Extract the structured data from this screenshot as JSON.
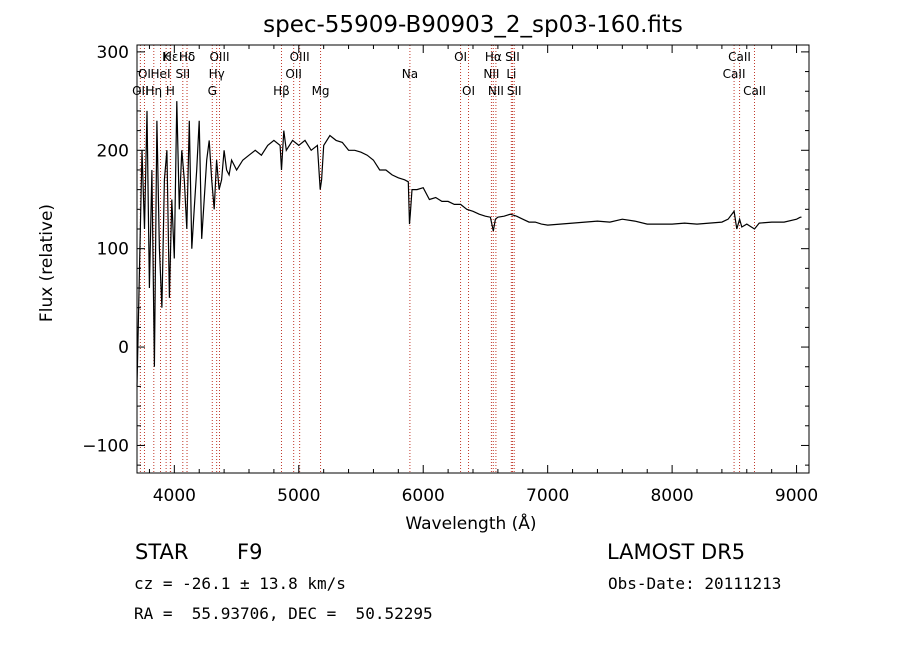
{
  "chart_data": {
    "type": "line",
    "title": "spec-55909-B90903_2_sp03-160.fits",
    "xlabel": "Wavelength (Å)",
    "ylabel": "Flux (relative)",
    "xlim": [
      3700,
      9100
    ],
    "ylim": [
      -128,
      307
    ],
    "xticks": [
      4000,
      5000,
      6000,
      7000,
      8000,
      9000
    ],
    "yticks": [
      -100,
      0,
      100,
      200,
      300
    ],
    "series": [
      {
        "x": [
          3700,
          3720,
          3740,
          3760,
          3780,
          3800,
          3820,
          3840,
          3860,
          3880,
          3900,
          3920,
          3940,
          3960,
          3980,
          4000,
          4020,
          4040,
          4060,
          4080,
          4100,
          4120,
          4140,
          4160,
          4180,
          4200,
          4220,
          4240,
          4260,
          4280,
          4300,
          4320,
          4340,
          4360,
          4380,
          4400,
          4420,
          4440,
          4460,
          4480,
          4500,
          4550,
          4600,
          4650,
          4700,
          4750,
          4800,
          4850,
          4861,
          4880,
          4900,
          4950,
          5000,
          5050,
          5100,
          5150,
          5172,
          5183,
          5200,
          5250,
          5300,
          5350,
          5400,
          5450,
          5500,
          5550,
          5600,
          5650,
          5700,
          5750,
          5800,
          5850,
          5880,
          5890,
          5896,
          5910,
          5950,
          6000,
          6050,
          6100,
          6150,
          6200,
          6250,
          6300,
          6350,
          6400,
          6450,
          6500,
          6540,
          6563,
          6580,
          6600,
          6650,
          6700,
          6750,
          6800,
          6850,
          6900,
          6950,
          7000,
          7100,
          7200,
          7300,
          7400,
          7500,
          7600,
          7700,
          7800,
          7900,
          8000,
          8100,
          8200,
          8300,
          8400,
          8450,
          8498,
          8520,
          8542,
          8560,
          8600,
          8662,
          8700,
          8800,
          8900,
          9000,
          9030,
          9040
        ],
        "y": [
          -40,
          80,
          200,
          120,
          240,
          60,
          180,
          -20,
          230,
          100,
          40,
          170,
          200,
          50,
          150,
          90,
          250,
          140,
          200,
          170,
          120,
          230,
          100,
          140,
          180,
          230,
          110,
          150,
          190,
          210,
          170,
          140,
          190,
          160,
          170,
          200,
          180,
          175,
          190,
          185,
          180,
          190,
          195,
          200,
          195,
          205,
          210,
          205,
          180,
          220,
          200,
          210,
          205,
          210,
          200,
          205,
          160,
          170,
          205,
          215,
          210,
          208,
          200,
          200,
          198,
          195,
          190,
          180,
          180,
          175,
          172,
          170,
          168,
          125,
          135,
          160,
          160,
          162,
          150,
          152,
          148,
          148,
          145,
          145,
          140,
          138,
          135,
          133,
          132,
          118,
          130,
          132,
          133,
          135,
          133,
          130,
          127,
          127,
          125,
          124,
          125,
          126,
          127,
          128,
          127,
          130,
          128,
          125,
          125,
          125,
          126,
          125,
          126,
          127,
          130,
          138,
          120,
          130,
          122,
          125,
          120,
          126,
          127,
          127,
          130,
          132,
          132
        ]
      }
    ],
    "spectral_lines": [
      {
        "label": "Hδ",
        "x": 4102,
        "row": 1
      },
      {
        "label": "K",
        "x": 3934,
        "row": 1
      },
      {
        "label": "Hε",
        "x": 3970,
        "row": 1
      },
      {
        "label": "Hδ",
        "x": 4102,
        "row": 1
      },
      {
        "label": "OII",
        "x": 3727,
        "row": 3
      },
      {
        "label": "Hη",
        "x": 3835,
        "row": 3
      },
      {
        "label": "H",
        "x": 3968,
        "row": 3
      },
      {
        "label": "OI",
        "x": 3760,
        "row": 2
      },
      {
        "label": "HeI",
        "x": 3889,
        "row": 2
      },
      {
        "label": "SII",
        "x": 4068,
        "row": 2
      },
      {
        "label": "OIII",
        "x": 4363,
        "row": 1
      },
      {
        "label": "Hγ",
        "x": 4340,
        "row": 2
      },
      {
        "label": "G",
        "x": 4305,
        "row": 3
      },
      {
        "label": "OIII",
        "x": 5007,
        "row": 1
      },
      {
        "label": "OII",
        "x": 4959,
        "row": 2
      },
      {
        "label": "Hβ",
        "x": 4861,
        "row": 3
      },
      {
        "label": "Mg",
        "x": 5175,
        "row": 3
      },
      {
        "label": "Na",
        "x": 5893,
        "row": 2
      },
      {
        "label": "OI",
        "x": 6300,
        "row": 1
      },
      {
        "label": "OI",
        "x": 6364,
        "row": 3
      },
      {
        "label": "Hα",
        "x": 6563,
        "row": 1
      },
      {
        "label": "SII",
        "x": 6717,
        "row": 1
      },
      {
        "label": "NII",
        "x": 6548,
        "row": 2
      },
      {
        "label": "Li",
        "x": 6708,
        "row": 2
      },
      {
        "label": "NII",
        "x": 6584,
        "row": 3
      },
      {
        "label": "SII",
        "x": 6731,
        "row": 3
      },
      {
        "label": "CaII",
        "x": 8542,
        "row": 1
      },
      {
        "label": "CaII",
        "x": 8498,
        "row": 2
      },
      {
        "label": "CaII",
        "x": 8662,
        "row": 3
      }
    ]
  },
  "info": {
    "class": "STAR",
    "subclass": "F9",
    "survey": "LAMOST DR5",
    "cz": "cz = -26.1 ± 13.8 km/s",
    "obs_date": "Obs-Date: 20111213",
    "coords": "RA =  55.93706, DEC =  50.52295"
  }
}
